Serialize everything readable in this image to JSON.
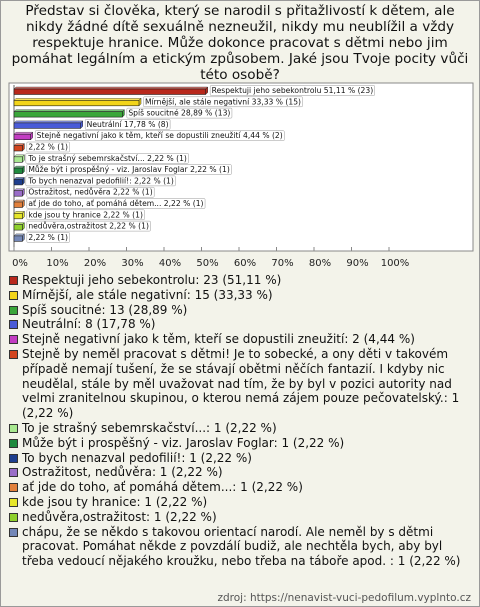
{
  "chart_data": {
    "type": "bar",
    "orientation": "horizontal",
    "title": "Představ si člověka, který se narodil s přitažlivostí k dětem, ale nikdy žádné dítě sexuálně nezneužil, nikdy mu neublížil a vždy respektuje hranice. Může dokonce pracovat s dětmi nebo jim pomáhat legálním a etickým způsobem. Jaké jsou Tvoje pocity vůči této osobě?",
    "values": [
      51.11,
      33.33,
      28.89,
      17.78,
      4.44,
      2.22,
      2.22,
      2.22,
      2.22,
      2.22,
      2.22,
      2.22,
      2.22,
      2.22
    ],
    "value_labels": [
      "Respektuji jeho sebekontrolu 51,11 % (23)",
      "Mírnější, ale stále negativní 33,33 % (15)",
      "Spíš soucitné 28,89 % (13)",
      "Neutrální 17,78 % (8)",
      "Stejně negativní jako k těm, kteří se dopustili zneužití 4,44 % (2)",
      "2,22 % (1)",
      "To je strašný sebemrskačství... 2,22 % (1)",
      "Může být i prospěšný - viz. Jaroslav Foglar 2,22 % (1)",
      "To bych nenazval pedofilií!: 2,22 % (1)",
      "Ostražitost, nedůvěra 2,22 % (1)",
      "ať jde do toho, ať pomáhá dětem... 2,22 % (1)",
      "kde jsou ty hranice 2,22 % (1)",
      "nedůvěra,ostražitost 2,22 % (1)",
      "2,22 % (1)"
    ],
    "legend_labels": [
      "Respektuji jeho sebekontrolu: 23 (51,11 %)",
      "Mírnější, ale stále negativní: 15 (33,33 %)",
      "Spíš soucitné: 13 (28,89 %)",
      "Neutrální: 8 (17,78 %)",
      "Stejně negativní jako k těm, kteří se dopustili zneužití: 2 (4,44 %)",
      "Stejně by neměl pracovat s dětmi! Je to sobecké, a ony děti v takovém případě nemají tušení, že se stávají obětmi něčích fantazií. I kdyby nic neudělal, stále by měl uvažovat nad tím, že by byl v pozici autority nad velmi zranitelnou skupinou, o kterou nemá zájem pouze pečovatelský.: 1 (2,22 %)",
      "To je strašný sebemrskačství...: 1 (2,22 %)",
      "Může být i prospěšný - viz. Jaroslav Foglar: 1 (2,22 %)",
      "To bych nenazval pedofilií!: 1 (2,22 %)",
      "Ostražitost, nedůvěra: 1 (2,22 %)",
      "ať jde do toho, ať pomáhá dětem...: 1 (2,22 %)",
      "kde jsou ty hranice: 1 (2,22 %)",
      "nedůvěra,ostražitost: 1 (2,22 %)",
      "chápu, že se někdo s takovou orientací narodí. Ale neměl by s dětmi pracovat. Pomáhat někde z povzdálí budiž, ale nechtěla bych, aby byl třeba vedoucí nějakého kroužku, nebo třeba na táboře apod. : 1 (2,22 %)"
    ],
    "colors": [
      "#b8281c",
      "#f2d41a",
      "#3aa63a",
      "#4a5bd8",
      "#c23cc2",
      "#d2441e",
      "#a8e890",
      "#1f8a3e",
      "#1e3e8e",
      "#9a6ec8",
      "#e2803c",
      "#e6e62a",
      "#8ed02c",
      "#7488b8"
    ],
    "xlim": [
      0,
      100
    ],
    "xticks": [
      {
        "value": 0,
        "label": "0%"
      },
      {
        "value": 10,
        "label": "10%"
      },
      {
        "value": 20,
        "label": "20%"
      },
      {
        "value": 30,
        "label": "30%"
      },
      {
        "value": 40,
        "label": "40%"
      },
      {
        "value": 50,
        "label": "50%"
      },
      {
        "value": 60,
        "label": "60%"
      },
      {
        "value": 70,
        "label": "70%"
      },
      {
        "value": 80,
        "label": "80%"
      },
      {
        "value": 90,
        "label": "90%"
      },
      {
        "value": 100,
        "label": "100%"
      }
    ],
    "source": "zdroj: https://nenavist-vuci-pedofilum.vyplnto.cz"
  }
}
